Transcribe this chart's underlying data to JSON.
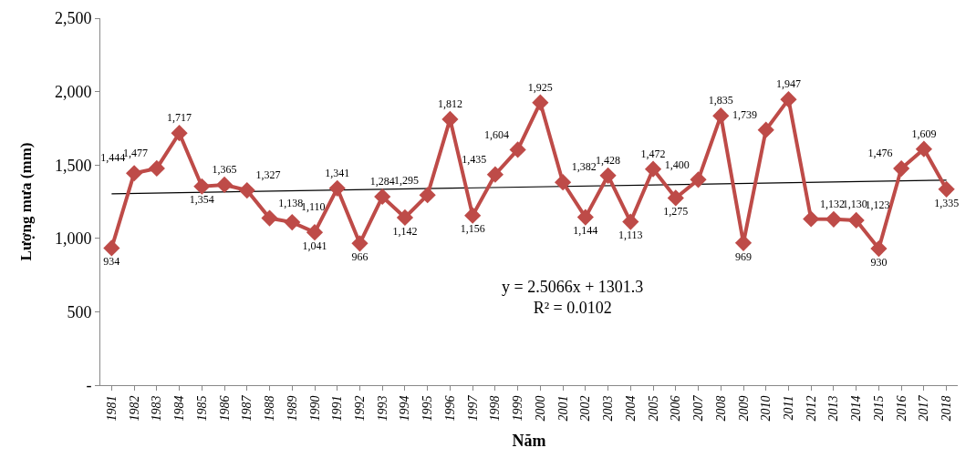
{
  "chart_data": {
    "type": "line",
    "xlabel": "Năm",
    "ylabel": "Lượng mưa (mm)",
    "x": [
      1981,
      1982,
      1983,
      1984,
      1985,
      1986,
      1987,
      1988,
      1989,
      1990,
      1991,
      1992,
      1993,
      1994,
      1995,
      1996,
      1997,
      1998,
      1999,
      2000,
      2001,
      2002,
      2003,
      2004,
      2005,
      2006,
      2007,
      2008,
      2009,
      2010,
      2011,
      2012,
      2013,
      2014,
      2015,
      2016,
      2017,
      2018
    ],
    "xlim": [
      1980.5,
      2018.5
    ],
    "xticks": [
      1981,
      1982,
      1983,
      1984,
      1985,
      1986,
      1987,
      1988,
      1989,
      1990,
      1991,
      1992,
      1993,
      1994,
      1995,
      1996,
      1997,
      1998,
      1999,
      2000,
      2001,
      2002,
      2003,
      2004,
      2005,
      2006,
      2007,
      2008,
      2009,
      2010,
      2011,
      2012,
      2013,
      2014,
      2015,
      2016,
      2017,
      2018
    ],
    "ylim": [
      0,
      2500
    ],
    "yticks": [
      {
        "value": 0,
        "label": "-"
      },
      {
        "value": 500,
        "label": "500"
      },
      {
        "value": 1000,
        "label": "1,000"
      },
      {
        "value": 1500,
        "label": "1,500"
      },
      {
        "value": 2000,
        "label": "2,000"
      },
      {
        "value": 2500,
        "label": "2,500"
      }
    ],
    "grid": false,
    "marker": "diamond",
    "line_style": "solid",
    "series": [
      {
        "color": "#be4b48",
        "values": [
          934,
          1444,
          1477,
          1717,
          1354,
          1365,
          1327,
          1138,
          1110,
          1041,
          1341,
          966,
          1284,
          1142,
          1295,
          1812,
          1156,
          1435,
          1604,
          1925,
          1382,
          1144,
          1428,
          1113,
          1472,
          1275,
          1400,
          1835,
          969,
          1739,
          1947,
          1132,
          1130,
          1123,
          930,
          1476,
          1609,
          1335
        ],
        "value_labels": [
          "934",
          "1,444",
          "1,477",
          "1,717",
          "1,354",
          "1,365",
          "1,327",
          "1,138",
          "1,110",
          "1,041",
          "1,341",
          "966",
          "1,284",
          "1,142",
          "1,295",
          "1,812",
          "1,156",
          "1,435",
          "1,604",
          "1,925",
          "1,382",
          "1,144",
          "1,428",
          "1,113",
          "1,472",
          "1,275",
          "1,400",
          "1,835",
          "969",
          "1,739",
          "1,947",
          "1,132",
          "1,130",
          "1,123",
          "930",
          "1,476",
          "1,609",
          "1,335"
        ]
      },
      {
        "type": "line",
        "marker": "none",
        "color": "#000000",
        "x": [
          1981,
          2018
        ],
        "values": [
          1304,
          1397
        ]
      }
    ],
    "annotations": [
      "y = 2.5066x + 1301.3\nR² = 0.0102"
    ]
  }
}
